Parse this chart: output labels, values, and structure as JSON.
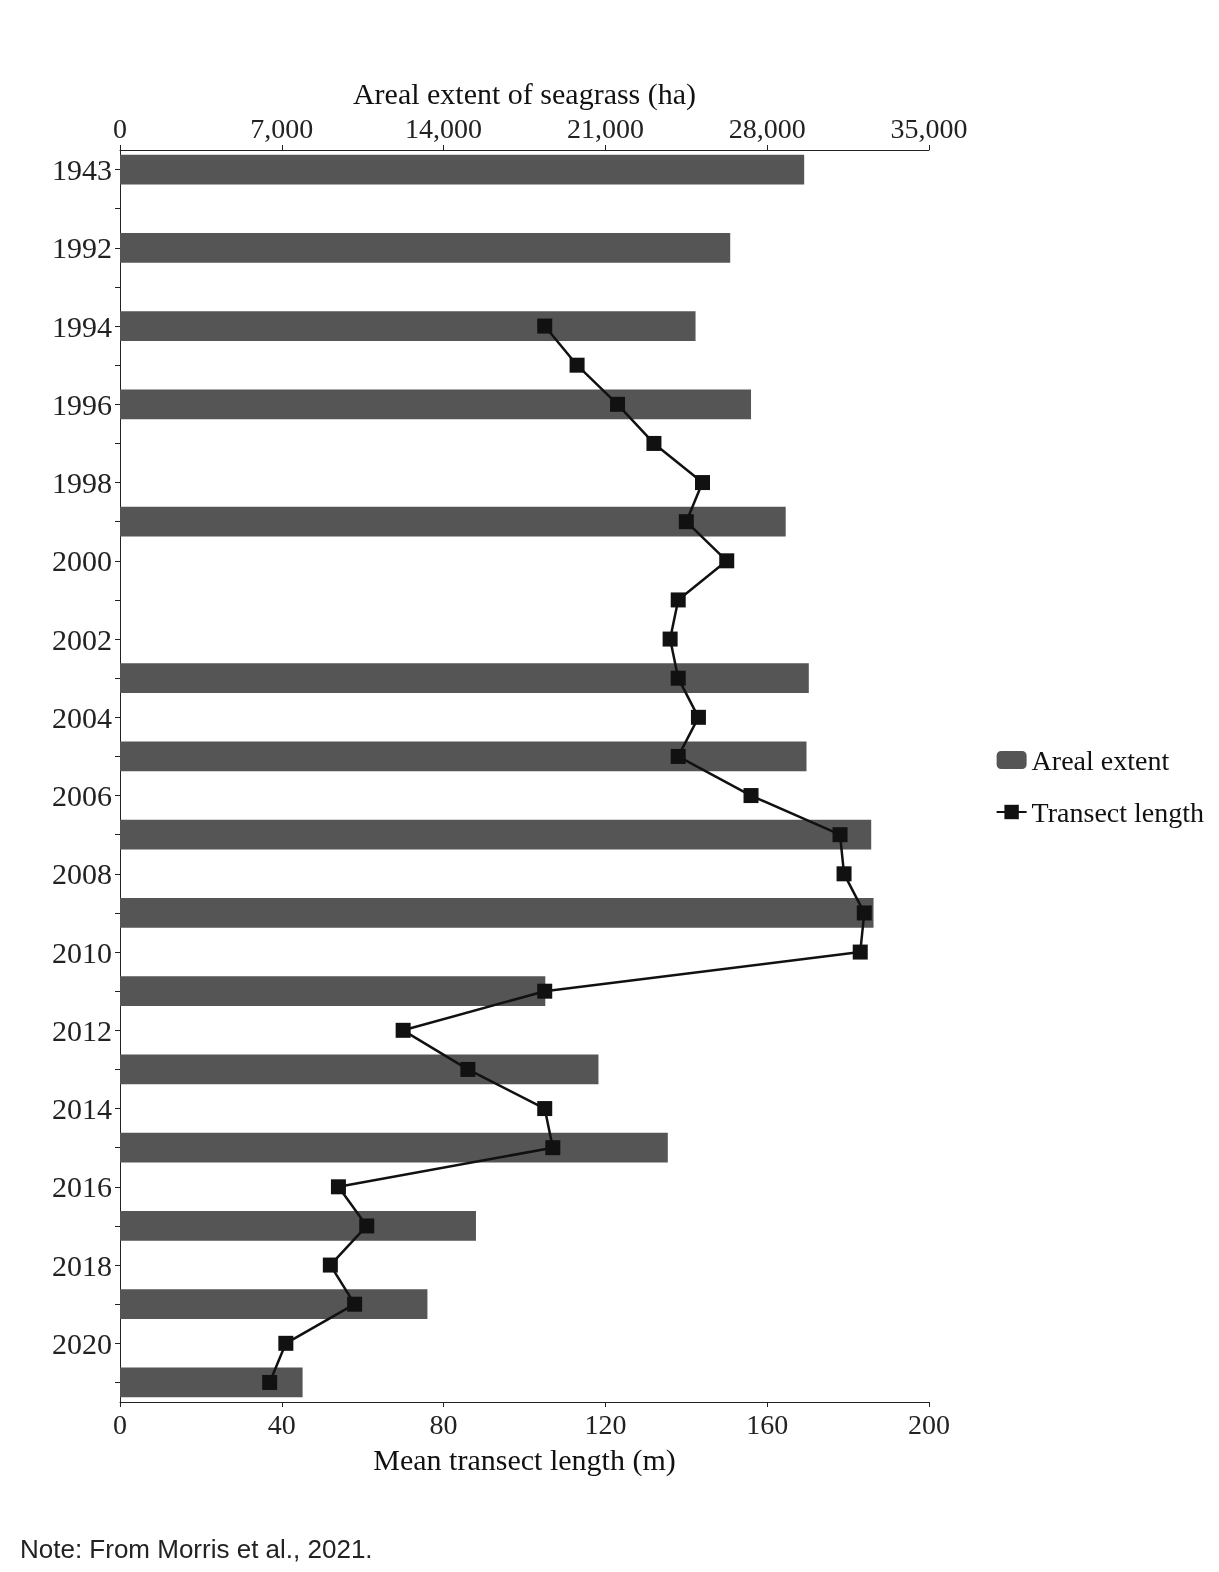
{
  "chart_data": {
    "type": "bar",
    "orientation": "horizontal",
    "categories": [
      "1943",
      null,
      "1992",
      null,
      "1994",
      null,
      "1996",
      null,
      "1998",
      null,
      "2000",
      null,
      "2002",
      null,
      "2004",
      null,
      "2006",
      null,
      "2008",
      null,
      "2010",
      null,
      "2012",
      null,
      "2014",
      null,
      "2016",
      null,
      "2018",
      null,
      "2020",
      null
    ],
    "series": [
      {
        "name": "Areal extent",
        "axis": "x2",
        "color": "#555555",
        "values": [
          29600,
          null,
          26400,
          null,
          24900,
          null,
          27300,
          null,
          null,
          28800,
          null,
          null,
          null,
          29800,
          null,
          29700,
          null,
          32500,
          null,
          32600,
          null,
          18400,
          null,
          20700,
          null,
          23700,
          null,
          15400,
          null,
          13300,
          null,
          7900
        ]
      },
      {
        "name": "Transect length",
        "type": "line",
        "color": "#111111",
        "values": [
          null,
          null,
          null,
          null,
          105,
          113,
          123,
          132,
          144,
          140,
          150,
          138,
          136,
          138,
          143,
          138,
          156,
          178,
          179,
          184,
          183,
          105,
          70,
          86,
          105,
          107,
          54,
          61,
          52,
          58,
          41,
          37
        ]
      }
    ],
    "xlabel": "Mean transect length (m)",
    "xlim": [
      0,
      200
    ],
    "xticks": [
      0,
      40,
      80,
      120,
      160,
      200
    ],
    "x2label": "Areal extent of seagrass (ha)",
    "x2lim": [
      0,
      35000
    ],
    "x2ticks": [
      0,
      {
        "value": 7000,
        "label": "7,000"
      },
      {
        "value": 14000,
        "label": "14,000"
      },
      {
        "value": 21000,
        "label": "21,000"
      },
      {
        "value": 28000,
        "label": "28,000"
      },
      {
        "value": 35000,
        "label": "35,000"
      }
    ],
    "marker": "square",
    "line_style": "solid",
    "legend": "right",
    "grid": false,
    "annotations": [
      "Note: From Morris et al., 2021."
    ]
  }
}
